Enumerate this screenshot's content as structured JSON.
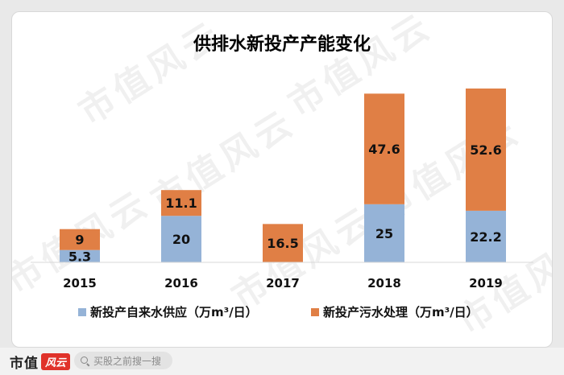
{
  "chart_data": {
    "type": "bar",
    "stacked": true,
    "title": "供排水新投产产能变化",
    "categories": [
      "2015",
      "2016",
      "2017",
      "2018",
      "2019"
    ],
    "series": [
      {
        "name": "新投产自来水供应（万m³/日）",
        "values": [
          5.3,
          20,
          null,
          25,
          22.2
        ],
        "labels": [
          "5.3",
          "20",
          "",
          "25",
          "22.2"
        ],
        "color": "#95b3d7"
      },
      {
        "name": "新投产污水处理（万m³/日）",
        "values": [
          9,
          11.1,
          16.5,
          47.6,
          52.6
        ],
        "labels": [
          "9",
          "11.1",
          "16.5",
          "47.6",
          "52.6"
        ],
        "color": "#e07f45"
      }
    ],
    "ylim": [
      0,
      80
    ],
    "grid": false,
    "legend_position": "bottom"
  },
  "watermark": "市值风云",
  "footer": {
    "brand": "市值",
    "brand_badge": "风云",
    "search_placeholder": "买股之前搜一搜"
  }
}
